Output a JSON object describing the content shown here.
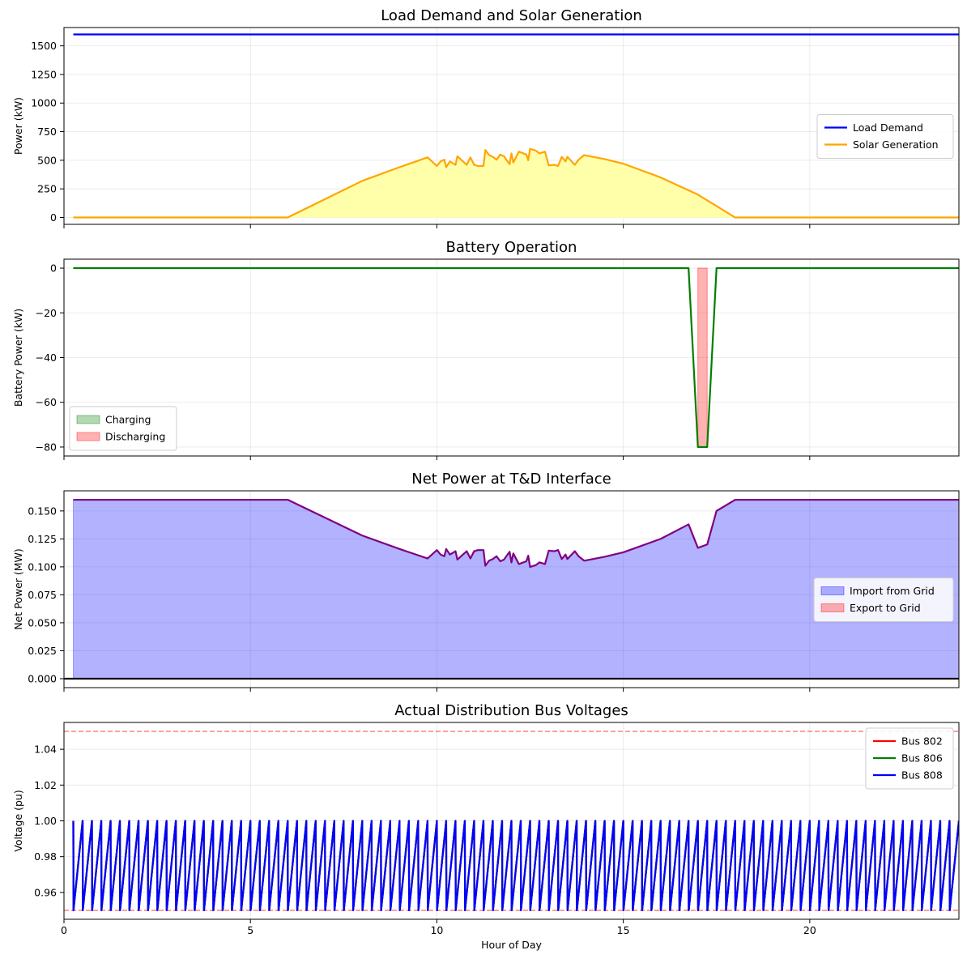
{
  "chart_data": [
    {
      "type": "line",
      "title": "Load Demand and Solar Generation",
      "xlabel": "",
      "ylabel": "Power (kW)",
      "xlim": [
        0,
        24
      ],
      "ylim": [
        -60,
        1660
      ],
      "xticks": [
        0,
        5,
        10,
        15,
        20
      ],
      "show_xtick_labels": false,
      "yticks": [
        0,
        250,
        500,
        750,
        1000,
        1250,
        1500
      ],
      "ytick_labels": [
        "0",
        "250",
        "500",
        "750",
        "1000",
        "1250",
        "1500"
      ],
      "grid": true,
      "legend_position": "center-right",
      "series": [
        {
          "name": "Load Demand",
          "color": "#0000ff",
          "points": [
            [
              0.25,
              1600
            ],
            [
              24,
              1600
            ]
          ]
        },
        {
          "name": "Solar Generation",
          "color": "#ffa500",
          "fill": "#ffffaa",
          "points": [
            [
              0.25,
              0
            ],
            [
              6.0,
              0
            ],
            [
              7.0,
              160
            ],
            [
              8.0,
              320
            ],
            [
              9.0,
              440
            ],
            [
              9.75,
              525
            ],
            [
              10.0,
              450
            ],
            [
              10.1,
              490
            ],
            [
              10.2,
              505
            ],
            [
              10.25,
              440
            ],
            [
              10.35,
              490
            ],
            [
              10.5,
              460
            ],
            [
              10.55,
              535
            ],
            [
              10.7,
              490
            ],
            [
              10.8,
              460
            ],
            [
              10.9,
              525
            ],
            [
              11.0,
              460
            ],
            [
              11.1,
              450
            ],
            [
              11.25,
              450
            ],
            [
              11.3,
              590
            ],
            [
              11.4,
              545
            ],
            [
              11.5,
              530
            ],
            [
              11.6,
              505
            ],
            [
              11.7,
              550
            ],
            [
              11.8,
              535
            ],
            [
              11.95,
              465
            ],
            [
              12.0,
              560
            ],
            [
              12.05,
              480
            ],
            [
              12.2,
              575
            ],
            [
              12.4,
              550
            ],
            [
              12.45,
              500
            ],
            [
              12.5,
              600
            ],
            [
              12.65,
              585
            ],
            [
              12.75,
              560
            ],
            [
              12.9,
              575
            ],
            [
              13.0,
              455
            ],
            [
              13.15,
              460
            ],
            [
              13.25,
              450
            ],
            [
              13.35,
              530
            ],
            [
              13.45,
              490
            ],
            [
              13.5,
              530
            ],
            [
              13.7,
              460
            ],
            [
              13.8,
              505
            ],
            [
              13.95,
              545
            ],
            [
              14.5,
              510
            ],
            [
              15.0,
              470
            ],
            [
              16.0,
              350
            ],
            [
              17.0,
              200
            ],
            [
              18.0,
              0
            ],
            [
              24,
              0
            ]
          ]
        }
      ]
    },
    {
      "type": "line",
      "title": "Battery Operation",
      "xlabel": "",
      "ylabel": "Battery Power (kW)",
      "xlim": [
        0,
        24
      ],
      "ylim": [
        -84,
        4
      ],
      "xticks": [
        0,
        5,
        10,
        15,
        20
      ],
      "show_xtick_labels": false,
      "yticks": [
        -80,
        -60,
        -40,
        -20,
        0
      ],
      "ytick_labels": [
        "−80",
        "−60",
        "−40",
        "−20",
        "0"
      ],
      "grid": true,
      "legend_position": "lower-left",
      "series": [
        {
          "name": "",
          "color": "#008000",
          "points": [
            [
              0.25,
              0
            ],
            [
              16.75,
              0
            ],
            [
              17.0,
              -80
            ],
            [
              17.25,
              -80
            ],
            [
              17.5,
              0
            ],
            [
              24,
              0
            ]
          ]
        }
      ],
      "fill_regions": [
        {
          "name": "Discharging",
          "color": "#ff0000",
          "opacity": 0.3,
          "x0": 17.0,
          "x1": 17.25,
          "y0": -80,
          "y1": 0
        }
      ],
      "legend": [
        {
          "name": "Charging",
          "color": "#008000",
          "opacity": 0.3
        },
        {
          "name": "Discharging",
          "color": "#ff0000",
          "opacity": 0.3
        }
      ]
    },
    {
      "type": "area",
      "title": "Net Power at T&D Interface",
      "xlabel": "",
      "ylabel": "Net Power (MW)",
      "xlim": [
        0,
        24
      ],
      "ylim": [
        -0.008,
        0.168
      ],
      "xticks": [
        0,
        5,
        10,
        15,
        20
      ],
      "show_xtick_labels": false,
      "yticks": [
        0,
        0.025,
        0.05,
        0.075,
        0.1,
        0.125,
        0.15
      ],
      "ytick_labels": [
        "0.000",
        "0.025",
        "0.050",
        "0.075",
        "0.100",
        "0.125",
        "0.150"
      ],
      "grid": true,
      "legend_position": "center-right",
      "zero_line": true,
      "series": [
        {
          "name": "",
          "color": "#800080",
          "fill": "#0000ff",
          "fill_opacity": 0.3,
          "points": [
            [
              0.25,
              0.16
            ],
            [
              6.0,
              0.16
            ],
            [
              7.0,
              0.144
            ],
            [
              8.0,
              0.128
            ],
            [
              9.0,
              0.116
            ],
            [
              9.75,
              0.1075
            ],
            [
              10.0,
              0.115
            ],
            [
              10.1,
              0.111
            ],
            [
              10.2,
              0.1095
            ],
            [
              10.25,
              0.116
            ],
            [
              10.35,
              0.111
            ],
            [
              10.5,
              0.114
            ],
            [
              10.55,
              0.1065
            ],
            [
              10.7,
              0.111
            ],
            [
              10.8,
              0.114
            ],
            [
              10.9,
              0.1075
            ],
            [
              11.0,
              0.114
            ],
            [
              11.1,
              0.115
            ],
            [
              11.25,
              0.115
            ],
            [
              11.3,
              0.101
            ],
            [
              11.4,
              0.1055
            ],
            [
              11.5,
              0.107
            ],
            [
              11.6,
              0.1095
            ],
            [
              11.7,
              0.105
            ],
            [
              11.8,
              0.1065
            ],
            [
              11.95,
              0.1135
            ],
            [
              12.0,
              0.104
            ],
            [
              12.05,
              0.112
            ],
            [
              12.2,
              0.1025
            ],
            [
              12.4,
              0.105
            ],
            [
              12.45,
              0.11
            ],
            [
              12.5,
              0.1
            ],
            [
              12.65,
              0.1015
            ],
            [
              12.75,
              0.104
            ],
            [
              12.9,
              0.1025
            ],
            [
              13.0,
              0.1145
            ],
            [
              13.15,
              0.114
            ],
            [
              13.25,
              0.115
            ],
            [
              13.35,
              0.107
            ],
            [
              13.45,
              0.111
            ],
            [
              13.5,
              0.107
            ],
            [
              13.7,
              0.114
            ],
            [
              13.8,
              0.1095
            ],
            [
              13.95,
              0.1055
            ],
            [
              14.5,
              0.109
            ],
            [
              15.0,
              0.113
            ],
            [
              16.0,
              0.125
            ],
            [
              16.75,
              0.138
            ],
            [
              17.0,
              0.117
            ],
            [
              17.25,
              0.12
            ],
            [
              17.5,
              0.15
            ],
            [
              18.0,
              0.16
            ],
            [
              24,
              0.16
            ]
          ]
        }
      ],
      "legend": [
        {
          "name": "Import from Grid",
          "color": "#0000ff",
          "opacity": 0.3
        },
        {
          "name": "Export to Grid",
          "color": "#ff0000",
          "opacity": 0.3
        }
      ]
    },
    {
      "type": "line",
      "title": "Actual Distribution Bus Voltages",
      "xlabel": "Hour of Day",
      "ylabel": "Voltage (pu)",
      "xlim": [
        0,
        24
      ],
      "ylim": [
        0.945,
        1.055
      ],
      "xticks": [
        0,
        5,
        10,
        15,
        20
      ],
      "show_xtick_labels": true,
      "xtick_labels": [
        "0",
        "5",
        "10",
        "15",
        "20"
      ],
      "yticks": [
        0.96,
        0.98,
        1.0,
        1.02,
        1.04
      ],
      "ytick_labels": [
        "0.96",
        "0.98",
        "1.00",
        "1.02",
        "1.04"
      ],
      "grid": true,
      "legend_position": "top-right",
      "reference_lines": [
        {
          "y": 1.05,
          "color": "#ff0000",
          "style": "dashed",
          "opacity": 0.5
        },
        {
          "y": 0.95,
          "color": "#ff0000",
          "style": "dashed",
          "opacity": 0.5
        }
      ],
      "series": [
        {
          "name": "Bus 802",
          "color": "#ff0000",
          "pattern": "sawtooth",
          "x_start": 0.25,
          "x_end": 24,
          "period": 0.25,
          "min": 0.95,
          "max": 1.0
        },
        {
          "name": "Bus 806",
          "color": "#008000",
          "pattern": "sawtooth",
          "x_start": 0.25,
          "x_end": 24,
          "period": 0.25,
          "min": 0.95,
          "max": 1.0
        },
        {
          "name": "Bus 808",
          "color": "#0000ff",
          "pattern": "sawtooth",
          "x_start": 0.25,
          "x_end": 24,
          "period": 0.25,
          "min": 0.95,
          "max": 1.0
        }
      ]
    }
  ]
}
